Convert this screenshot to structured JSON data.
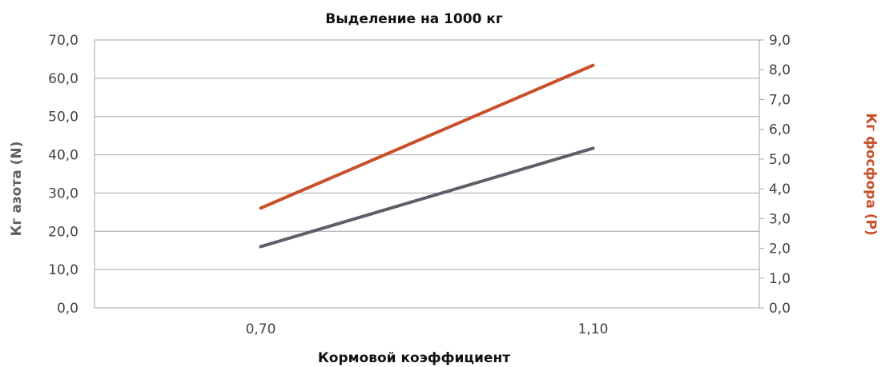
{
  "chart_data": {
    "type": "line",
    "title": "Выделение на 1000 кг",
    "xlabel": "Кормовой коэффициент",
    "ylabel_left": "Кг азота (N)",
    "ylabel_right": "Кг фосфора (P)",
    "categories": [
      "0,70",
      "1,10"
    ],
    "y_left": {
      "range": [
        0,
        70
      ],
      "ticks": [
        "0,0",
        "10,0",
        "20,0",
        "30,0",
        "40,0",
        "50,0",
        "60,0",
        "70,0"
      ]
    },
    "y_right": {
      "range": [
        0,
        9
      ],
      "ticks": [
        "0,0",
        "1,0",
        "2,0",
        "3,0",
        "4,0",
        "5,0",
        "6,0",
        "7,0",
        "8,0",
        "9,0"
      ]
    },
    "grid": true,
    "series": [
      {
        "axis": "left",
        "color": "#5c6068",
        "values": [
          16.0,
          41.7
        ]
      },
      {
        "axis": "right",
        "color": "#c8502a",
        "values": [
          3.35,
          8.15
        ]
      }
    ]
  }
}
